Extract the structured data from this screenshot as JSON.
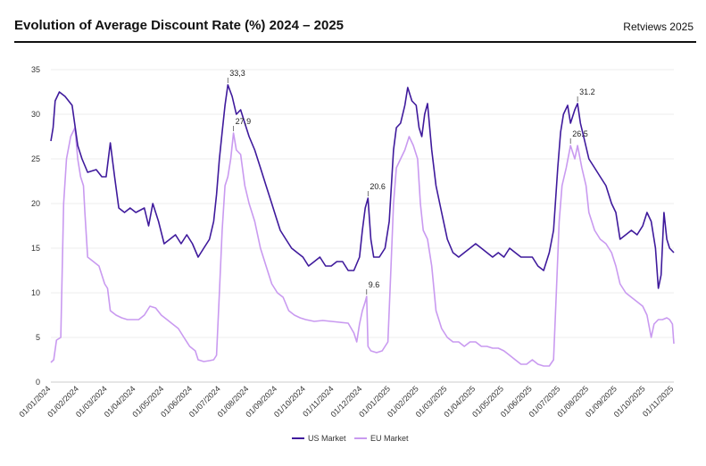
{
  "header": {
    "title": "Evolution of Average Discount Rate (%) 2024 – 2025",
    "brand": "Retviews 2025"
  },
  "chart_data": {
    "type": "line",
    "title": "Evolution of Average Discount Rate (%) 2024 – 2025",
    "xlabel": "",
    "ylabel": "",
    "ylim": [
      0,
      35
    ],
    "yticks": [
      "0",
      "5",
      "10",
      "15",
      "20",
      "25",
      "30",
      "35"
    ],
    "x_ticks": [
      "01/01/2024",
      "01/02/2024",
      "01/03/2024",
      "01/04/2024",
      "01/05/2024",
      "01/06/2024",
      "01/07/2024",
      "01/08/2024",
      "01/09/2024",
      "01/10/2024",
      "01/11/2024",
      "01/12/2024",
      "01/01/2025",
      "01/02/2025",
      "01/03/2025",
      "01/04/2025",
      "01/05/2025",
      "01/06/2025",
      "01/07/2025",
      "01/08/2025",
      "01/09/2025",
      "01/10/2025",
      "01/11/2025"
    ],
    "legend_position": "bottom-center",
    "series": [
      {
        "name": "US Market",
        "color": "#3f1a9c",
        "points": [
          [
            0.0,
            27
          ],
          [
            0.08,
            28.5
          ],
          [
            0.15,
            31.5
          ],
          [
            0.3,
            32.5
          ],
          [
            0.5,
            32
          ],
          [
            0.75,
            31
          ],
          [
            0.95,
            26.5
          ],
          [
            1.1,
            25
          ],
          [
            1.3,
            23.5
          ],
          [
            1.6,
            23.8
          ],
          [
            1.8,
            23
          ],
          [
            1.95,
            23
          ],
          [
            2.1,
            26.8
          ],
          [
            2.25,
            23
          ],
          [
            2.4,
            19.5
          ],
          [
            2.6,
            19
          ],
          [
            2.8,
            19.5
          ],
          [
            3.0,
            19
          ],
          [
            3.3,
            19.5
          ],
          [
            3.45,
            17.5
          ],
          [
            3.6,
            20
          ],
          [
            3.8,
            18
          ],
          [
            4.0,
            15.5
          ],
          [
            4.2,
            16
          ],
          [
            4.4,
            16.5
          ],
          [
            4.6,
            15.5
          ],
          [
            4.8,
            16.5
          ],
          [
            5.0,
            15.5
          ],
          [
            5.2,
            14
          ],
          [
            5.4,
            15
          ],
          [
            5.6,
            16
          ],
          [
            5.75,
            18
          ],
          [
            5.85,
            21
          ],
          [
            5.95,
            25
          ],
          [
            6.05,
            28
          ],
          [
            6.15,
            31
          ],
          [
            6.25,
            33.3
          ],
          [
            6.4,
            32
          ],
          [
            6.55,
            30
          ],
          [
            6.7,
            30.5
          ],
          [
            6.85,
            29
          ],
          [
            7.0,
            27.5
          ],
          [
            7.2,
            26
          ],
          [
            7.4,
            24
          ],
          [
            7.6,
            22
          ],
          [
            7.8,
            20
          ],
          [
            7.95,
            18.5
          ],
          [
            8.1,
            17
          ],
          [
            8.3,
            16
          ],
          [
            8.5,
            15
          ],
          [
            8.7,
            14.5
          ],
          [
            8.9,
            14
          ],
          [
            9.1,
            13
          ],
          [
            9.3,
            13.5
          ],
          [
            9.5,
            14
          ],
          [
            9.7,
            13
          ],
          [
            9.9,
            13
          ],
          [
            10.1,
            13.5
          ],
          [
            10.3,
            13.5
          ],
          [
            10.5,
            12.5
          ],
          [
            10.7,
            12.5
          ],
          [
            10.9,
            14
          ],
          [
            11.0,
            17
          ],
          [
            11.1,
            19.5
          ],
          [
            11.2,
            20.6
          ],
          [
            11.3,
            16
          ],
          [
            11.4,
            14
          ],
          [
            11.6,
            14
          ],
          [
            11.8,
            15
          ],
          [
            11.95,
            18
          ],
          [
            12.1,
            26
          ],
          [
            12.2,
            28.5
          ],
          [
            12.35,
            29
          ],
          [
            12.5,
            31
          ],
          [
            12.6,
            33
          ],
          [
            12.75,
            31.5
          ],
          [
            12.9,
            31
          ],
          [
            13.0,
            28.5
          ],
          [
            13.1,
            27.5
          ],
          [
            13.2,
            30
          ],
          [
            13.3,
            31.2
          ],
          [
            13.45,
            26
          ],
          [
            13.6,
            22
          ],
          [
            13.8,
            19
          ],
          [
            14.0,
            16
          ],
          [
            14.2,
            14.5
          ],
          [
            14.4,
            14
          ],
          [
            14.6,
            14.5
          ],
          [
            14.8,
            15
          ],
          [
            15.0,
            15.5
          ],
          [
            15.2,
            15
          ],
          [
            15.4,
            14.5
          ],
          [
            15.6,
            14
          ],
          [
            15.8,
            14.5
          ],
          [
            16.0,
            14
          ],
          [
            16.2,
            15
          ],
          [
            16.4,
            14.5
          ],
          [
            16.6,
            14
          ],
          [
            16.8,
            14
          ],
          [
            17.0,
            14
          ],
          [
            17.2,
            13
          ],
          [
            17.4,
            12.5
          ],
          [
            17.6,
            14.5
          ],
          [
            17.75,
            17
          ],
          [
            17.9,
            24
          ],
          [
            18.0,
            28
          ],
          [
            18.1,
            30
          ],
          [
            18.25,
            31
          ],
          [
            18.35,
            29
          ],
          [
            18.5,
            30.5
          ],
          [
            18.6,
            31.2
          ],
          [
            18.7,
            29
          ],
          [
            18.85,
            27
          ],
          [
            19.0,
            25
          ],
          [
            19.2,
            24
          ],
          [
            19.4,
            23
          ],
          [
            19.6,
            22
          ],
          [
            19.8,
            20
          ],
          [
            19.95,
            19
          ],
          [
            20.1,
            16
          ],
          [
            20.3,
            16.5
          ],
          [
            20.5,
            17
          ],
          [
            20.7,
            16.5
          ],
          [
            20.9,
            17.5
          ],
          [
            21.05,
            19
          ],
          [
            21.2,
            18
          ],
          [
            21.35,
            15
          ],
          [
            21.45,
            10.5
          ],
          [
            21.55,
            12
          ],
          [
            21.65,
            19
          ],
          [
            21.75,
            16
          ],
          [
            21.85,
            15
          ],
          [
            22.0,
            14.5
          ]
        ]
      },
      {
        "name": "EU Market",
        "color": "#c99af0",
        "points": [
          [
            0.0,
            2.2
          ],
          [
            0.1,
            2.5
          ],
          [
            0.2,
            4.7
          ],
          [
            0.35,
            5
          ],
          [
            0.45,
            20
          ],
          [
            0.55,
            25
          ],
          [
            0.7,
            27.5
          ],
          [
            0.85,
            28.5
          ],
          [
            0.95,
            25
          ],
          [
            1.05,
            23
          ],
          [
            1.15,
            22
          ],
          [
            1.2,
            19
          ],
          [
            1.3,
            14
          ],
          [
            1.5,
            13.5
          ],
          [
            1.7,
            13
          ],
          [
            1.9,
            11
          ],
          [
            2.0,
            10.5
          ],
          [
            2.1,
            8
          ],
          [
            2.3,
            7.5
          ],
          [
            2.5,
            7.2
          ],
          [
            2.7,
            7
          ],
          [
            2.9,
            7
          ],
          [
            3.1,
            7
          ],
          [
            3.3,
            7.5
          ],
          [
            3.5,
            8.5
          ],
          [
            3.7,
            8.3
          ],
          [
            3.9,
            7.5
          ],
          [
            4.1,
            7
          ],
          [
            4.3,
            6.5
          ],
          [
            4.5,
            6
          ],
          [
            4.7,
            5
          ],
          [
            4.9,
            4
          ],
          [
            5.1,
            3.5
          ],
          [
            5.2,
            2.5
          ],
          [
            5.4,
            2.3
          ],
          [
            5.6,
            2.4
          ],
          [
            5.75,
            2.5
          ],
          [
            5.85,
            3
          ],
          [
            5.95,
            10
          ],
          [
            6.05,
            17
          ],
          [
            6.15,
            22
          ],
          [
            6.25,
            23
          ],
          [
            6.35,
            25
          ],
          [
            6.45,
            27.9
          ],
          [
            6.55,
            26
          ],
          [
            6.7,
            25.5
          ],
          [
            6.85,
            22
          ],
          [
            7.0,
            20
          ],
          [
            7.2,
            18
          ],
          [
            7.4,
            15
          ],
          [
            7.6,
            13
          ],
          [
            7.8,
            11
          ],
          [
            8.0,
            10
          ],
          [
            8.2,
            9.5
          ],
          [
            8.4,
            8
          ],
          [
            8.6,
            7.5
          ],
          [
            8.8,
            7.2
          ],
          [
            9.0,
            7
          ],
          [
            9.3,
            6.8
          ],
          [
            9.6,
            6.9
          ],
          [
            9.9,
            6.8
          ],
          [
            10.2,
            6.7
          ],
          [
            10.5,
            6.6
          ],
          [
            10.7,
            5.5
          ],
          [
            10.8,
            4.5
          ],
          [
            10.9,
            6.5
          ],
          [
            11.0,
            8
          ],
          [
            11.1,
            9
          ],
          [
            11.15,
            9.6
          ],
          [
            11.2,
            4
          ],
          [
            11.3,
            3.5
          ],
          [
            11.5,
            3.3
          ],
          [
            11.7,
            3.5
          ],
          [
            11.9,
            4.5
          ],
          [
            12.0,
            12
          ],
          [
            12.1,
            20
          ],
          [
            12.2,
            24
          ],
          [
            12.35,
            25
          ],
          [
            12.5,
            26
          ],
          [
            12.65,
            27.5
          ],
          [
            12.8,
            26.5
          ],
          [
            12.95,
            25
          ],
          [
            13.05,
            20
          ],
          [
            13.15,
            17
          ],
          [
            13.3,
            16
          ],
          [
            13.45,
            13
          ],
          [
            13.6,
            8
          ],
          [
            13.8,
            6
          ],
          [
            14.0,
            5
          ],
          [
            14.2,
            4.5
          ],
          [
            14.4,
            4.5
          ],
          [
            14.6,
            4
          ],
          [
            14.8,
            4.5
          ],
          [
            15.0,
            4.5
          ],
          [
            15.2,
            4
          ],
          [
            15.4,
            4
          ],
          [
            15.6,
            3.8
          ],
          [
            15.8,
            3.8
          ],
          [
            16.0,
            3.5
          ],
          [
            16.2,
            3
          ],
          [
            16.4,
            2.5
          ],
          [
            16.6,
            2
          ],
          [
            16.8,
            2
          ],
          [
            17.0,
            2.5
          ],
          [
            17.2,
            2
          ],
          [
            17.4,
            1.8
          ],
          [
            17.6,
            1.8
          ],
          [
            17.75,
            2.5
          ],
          [
            17.85,
            10
          ],
          [
            17.95,
            18
          ],
          [
            18.05,
            22
          ],
          [
            18.2,
            24
          ],
          [
            18.35,
            26.5
          ],
          [
            18.5,
            25
          ],
          [
            18.6,
            26.5
          ],
          [
            18.75,
            24
          ],
          [
            18.9,
            22
          ],
          [
            19.0,
            19
          ],
          [
            19.2,
            17
          ],
          [
            19.4,
            16
          ],
          [
            19.6,
            15.5
          ],
          [
            19.8,
            14.5
          ],
          [
            19.95,
            13
          ],
          [
            20.1,
            11
          ],
          [
            20.3,
            10
          ],
          [
            20.5,
            9.5
          ],
          [
            20.7,
            9
          ],
          [
            20.9,
            8.5
          ],
          [
            21.05,
            7.5
          ],
          [
            21.2,
            5
          ],
          [
            21.3,
            6.5
          ],
          [
            21.45,
            7
          ],
          [
            21.6,
            7
          ],
          [
            21.75,
            7.2
          ],
          [
            21.85,
            7
          ],
          [
            21.95,
            6.5
          ],
          [
            22.0,
            4.3
          ]
        ]
      }
    ],
    "annotations": [
      {
        "x": 6.25,
        "y": 33.3,
        "label": "33,3"
      },
      {
        "x": 6.45,
        "y": 27.9,
        "label": "27,9"
      },
      {
        "x": 11.2,
        "y": 20.6,
        "label": "20.6"
      },
      {
        "x": 11.15,
        "y": 9.6,
        "label": "9.6"
      },
      {
        "x": 18.6,
        "y": 31.2,
        "label": "31.2"
      },
      {
        "x": 18.35,
        "y": 26.5,
        "label": "26.5"
      }
    ]
  }
}
